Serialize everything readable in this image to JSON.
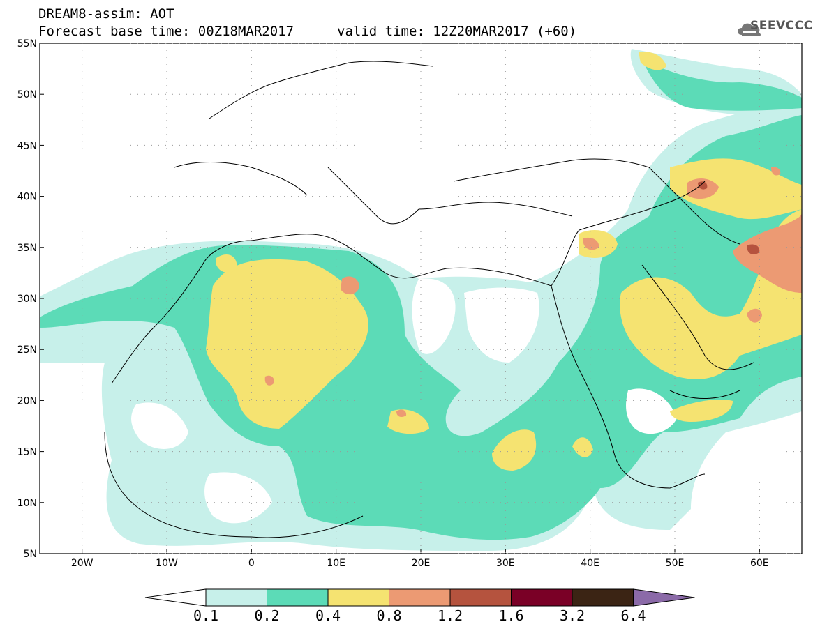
{
  "header": {
    "title": "DREAM8-assim: AOT",
    "base_time": "Forecast base time: 00Z18MAR2017",
    "valid_time": "valid time: 12Z20MAR2017 (+60)",
    "logo_text": "SEEVCCC"
  },
  "map": {
    "lon_range": [
      -25,
      65
    ],
    "lat_range": [
      5,
      55
    ],
    "lat_labels": [
      "55N",
      "50N",
      "45N",
      "40N",
      "35N",
      "30N",
      "25N",
      "20N",
      "15N",
      "10N",
      "5N"
    ],
    "lon_labels": [
      "20W",
      "10W",
      "0",
      "10E",
      "20E",
      "30E",
      "40E",
      "50E",
      "60E"
    ]
  },
  "colorbar": {
    "labels": [
      "0.1",
      "0.2",
      "0.4",
      "0.8",
      "1.2",
      "1.6",
      "3.2",
      "6.4"
    ],
    "colors": [
      "#c7f0ea",
      "#5cdbb7",
      "#f5e371",
      "#ec9a73",
      "#b5533e",
      "#7a0026",
      "#3b2414",
      "#8b6aa8"
    ],
    "under_color": "#ffffff"
  }
}
